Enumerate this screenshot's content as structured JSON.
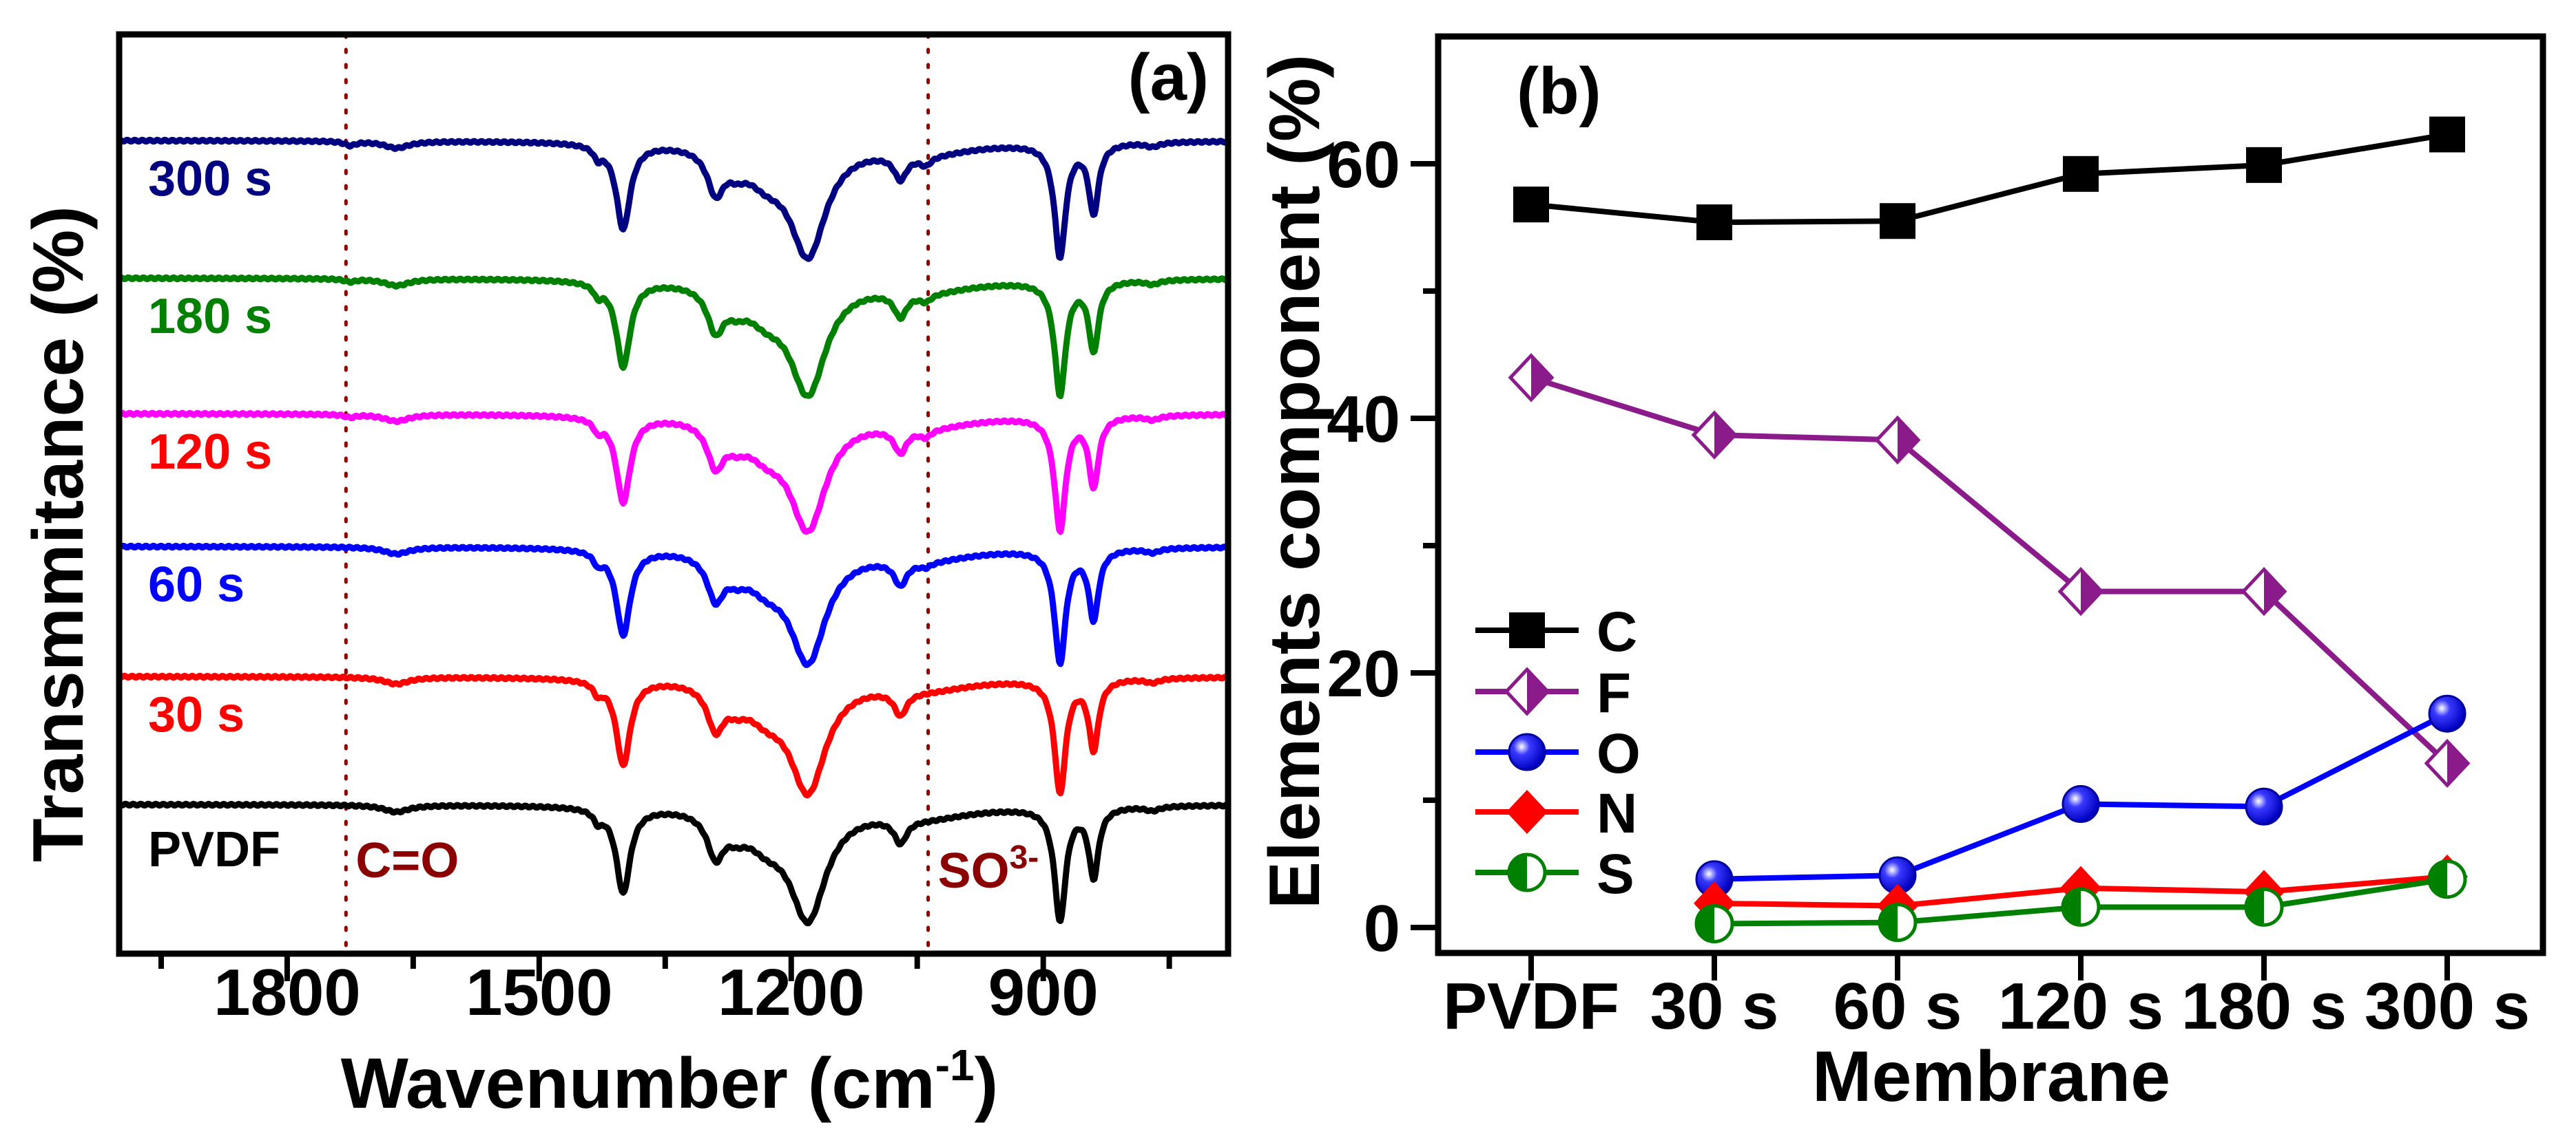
{
  "chart_data": [
    {
      "panel": "(a)",
      "type": "line",
      "xlabel": "Wavenumber (cm",
      "xlabel_sup": "-1",
      "xlabel_end": ")",
      "ylabel": "Transmmitance (%)",
      "xlim": [
        2000,
        680
      ],
      "xticks": [
        "1800",
        "1500",
        "1200",
        "900"
      ],
      "xtick_values": [
        1800,
        1500,
        1200,
        900
      ],
      "minor_ticks": [
        1950,
        1650,
        1350,
        1050,
        750
      ],
      "markers": [
        {
          "label": "C=O",
          "sup": "",
          "x": 1730,
          "color": "#8b0000"
        },
        {
          "label": "SO",
          "sup": "3-",
          "x": 1037,
          "color": "#8b0000"
        }
      ],
      "peaks_common": [
        {
          "x": 1430,
          "depth": 0.08,
          "w": 6
        },
        {
          "x": 1400,
          "depth": 0.62,
          "w": 10
        },
        {
          "x": 1290,
          "depth": 0.3,
          "w": 12
        },
        {
          "x": 1265,
          "depth": 0.1,
          "w": 15
        },
        {
          "x": 1180,
          "depth": 0.78,
          "w": 26
        },
        {
          "x": 1230,
          "depth": 0.2,
          "w": 30
        },
        {
          "x": 1070,
          "depth": 0.17,
          "w": 9
        },
        {
          "x": 880,
          "depth": 0.82,
          "w": 8
        },
        {
          "x": 840,
          "depth": 0.5,
          "w": 7
        },
        {
          "x": 1670,
          "depth": 0.05,
          "w": 18
        },
        {
          "x": 770,
          "depth": 0.03,
          "w": 10
        },
        {
          "x": 1040,
          "depth": 0.08,
          "w": 70
        }
      ],
      "series": [
        {
          "name": "300 s",
          "color": "#000080",
          "label_color": "#000080",
          "extra_peaks": [
            {
              "x": 1725,
              "depth": 0.03,
              "w": 8
            },
            {
              "x": 1040,
              "depth": 0.06,
              "w": 8
            }
          ]
        },
        {
          "name": "180 s",
          "color": "#008000",
          "label_color": "#008000",
          "extra_peaks": [
            {
              "x": 1725,
              "depth": 0.02,
              "w": 8
            },
            {
              "x": 1040,
              "depth": 0.05,
              "w": 8
            }
          ]
        },
        {
          "name": "120 s",
          "color": "#ff00ff",
          "label_color": "#ff0000",
          "extra_peaks": [
            {
              "x": 1725,
              "depth": 0.02,
              "w": 8
            },
            {
              "x": 1040,
              "depth": 0.05,
              "w": 8
            }
          ]
        },
        {
          "name": "60 s",
          "color": "#0000ff",
          "label_color": "#0000ff",
          "extra_peaks": [
            {
              "x": 1040,
              "depth": 0.03,
              "w": 8
            }
          ]
        },
        {
          "name": "30 s",
          "color": "#ff0000",
          "label_color": "#ff0000",
          "extra_peaks": []
        },
        {
          "name": "PVDF",
          "color": "#000000",
          "label_color": "#000000",
          "extra_peaks": []
        }
      ]
    },
    {
      "panel": "(b)",
      "type": "line",
      "xlabel": "Membrane",
      "ylabel": "Elements component (%)",
      "categories": [
        "PVDF",
        "30 s",
        "60 s",
        "120 s",
        "180 s",
        "300 s"
      ],
      "ylim": [
        -2,
        70
      ],
      "yticks": [
        "0",
        "20",
        "40",
        "60"
      ],
      "ytick_values": [
        0,
        20,
        40,
        60
      ],
      "minor_yticks": [
        10,
        30,
        50
      ],
      "legend_placement": "lower-left",
      "series": [
        {
          "name": "C",
          "color": "#000000",
          "marker": "square",
          "values": [
            56.8,
            55.4,
            55.5,
            59.2,
            59.9,
            62.3
          ]
        },
        {
          "name": "F",
          "color": "#8b1a8b",
          "marker": "half-diamond",
          "values": [
            43.2,
            38.7,
            38.3,
            26.4,
            26.4,
            12.9
          ]
        },
        {
          "name": "O",
          "color": "#0000ff",
          "marker": "sphere",
          "values": [
            null,
            3.8,
            4.1,
            9.7,
            9.5,
            16.8
          ]
        },
        {
          "name": "N",
          "color": "#ff0000",
          "marker": "diamond",
          "values": [
            null,
            1.9,
            1.7,
            3.1,
            2.8,
            4.0
          ]
        },
        {
          "name": "S",
          "color": "#008000",
          "marker": "half-circle",
          "values": [
            null,
            0.3,
            0.4,
            1.6,
            1.6,
            3.8
          ]
        }
      ]
    }
  ]
}
